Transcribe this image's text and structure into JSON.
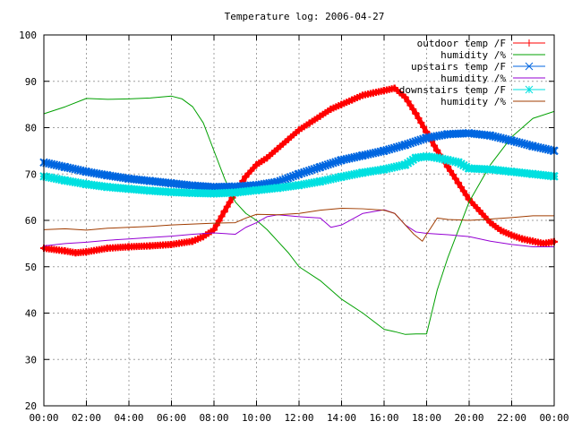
{
  "chart_data": {
    "type": "line",
    "title": "Temperature log: 2006-04-27",
    "xlabel": "",
    "ylabel": "",
    "xlim": [
      0,
      24
    ],
    "ylim": [
      20,
      100
    ],
    "grid": true,
    "legend_position": "top-right",
    "x_tick_labels": [
      "00:00",
      "02:00",
      "04:00",
      "06:00",
      "08:00",
      "10:00",
      "12:00",
      "14:00",
      "16:00",
      "18:00",
      "20:00",
      "22:00",
      "00:00"
    ],
    "y_tick_labels": [
      "20",
      "30",
      "40",
      "50",
      "60",
      "70",
      "80",
      "90",
      "100"
    ],
    "series": [
      {
        "name": "outdoor temp /F",
        "color": "#ff0000",
        "marker": "plus",
        "x": [
          0,
          1,
          1.5,
          2,
          3,
          4,
          5,
          6,
          7,
          7.5,
          8,
          8.5,
          9,
          9.5,
          10,
          10.5,
          11,
          11.5,
          12,
          12.5,
          13,
          13.5,
          14,
          14.5,
          15,
          15.5,
          16,
          16.5,
          17,
          17.5,
          18,
          18.5,
          19,
          19.5,
          20,
          20.5,
          21,
          21.5,
          22,
          22.5,
          23,
          23.5,
          24
        ],
        "y": [
          54,
          53.4,
          53,
          53.2,
          54,
          54.3,
          54.5,
          54.8,
          55.5,
          56.5,
          58,
          62,
          66,
          69.5,
          72,
          73.5,
          75.5,
          77.5,
          79.5,
          81,
          82.5,
          84,
          85,
          86,
          87,
          87.5,
          88,
          88.5,
          86.5,
          83,
          79,
          75,
          71.5,
          68,
          64.5,
          62,
          59.5,
          57.8,
          56.8,
          56,
          55.5,
          55,
          55.4
        ]
      },
      {
        "name": "humidity /%",
        "color": "#00a000",
        "marker": "none",
        "x": [
          0,
          1,
          2,
          3,
          4,
          5,
          6,
          6.5,
          7,
          7.5,
          8,
          8.5,
          9,
          9.5,
          10,
          10.5,
          11,
          11.5,
          12,
          13,
          14,
          15,
          16,
          16.5,
          17,
          17.5,
          18,
          18.5,
          19,
          19.5,
          20,
          21,
          22,
          23,
          24
        ],
        "y": [
          83,
          84.5,
          86.3,
          86.1,
          86.2,
          86.4,
          86.8,
          86.2,
          84.5,
          81,
          75,
          69,
          64,
          61.5,
          60,
          58,
          55.5,
          53,
          50,
          47,
          43,
          40,
          36.5,
          36,
          35.4,
          35.5,
          35.5,
          45,
          52,
          58,
          64,
          72,
          78,
          82,
          83.5
        ]
      },
      {
        "name": "upstairs temp /F",
        "color": "#0066e0",
        "marker": "cross",
        "x": [
          0,
          1,
          2,
          3,
          4,
          5,
          6,
          7,
          8,
          9,
          10,
          11,
          12,
          13,
          14,
          15,
          16,
          17,
          18,
          19,
          20,
          21,
          22,
          23,
          24
        ],
        "y": [
          72.5,
          71.5,
          70.5,
          69.7,
          69,
          68.5,
          68,
          67.5,
          67.2,
          67.3,
          67.6,
          68.3,
          70,
          71.5,
          73,
          74,
          75,
          76.3,
          77.8,
          78.6,
          78.8,
          78.3,
          77.2,
          76,
          75
        ]
      },
      {
        "name": "humidity /%",
        "color": "#9500d3",
        "marker": "none",
        "x": [
          0,
          1,
          2,
          3,
          4,
          5,
          6,
          7,
          8,
          9,
          9.5,
          10,
          10.5,
          11,
          12,
          13,
          13.5,
          14,
          15,
          16,
          16.5,
          17,
          17.5,
          18,
          19,
          20,
          21,
          22,
          23,
          24
        ],
        "y": [
          54.5,
          55,
          55.3,
          55.7,
          56,
          56.3,
          56.6,
          57,
          57.3,
          57,
          58.5,
          59.5,
          60.8,
          61.2,
          60.8,
          60.5,
          58.5,
          59,
          61.5,
          62.3,
          61.5,
          59,
          57.5,
          57.2,
          56.9,
          56.5,
          55.5,
          54.8,
          54.3,
          54.3
        ]
      },
      {
        "name": "downstairs temp /F",
        "color": "#00e0e0",
        "marker": "star",
        "x": [
          0,
          1,
          2,
          3,
          4,
          5,
          6,
          7,
          8,
          9,
          10,
          11,
          12,
          13,
          14,
          15,
          16,
          17,
          17.5,
          18,
          18.5,
          19,
          19.5,
          20,
          21,
          22,
          23,
          24
        ],
        "y": [
          69.5,
          68.6,
          67.8,
          67.2,
          66.8,
          66.4,
          66.1,
          65.9,
          65.8,
          66,
          66.5,
          67,
          67.6,
          68.4,
          69.4,
          70.3,
          71,
          72,
          73.5,
          73.8,
          73.5,
          73,
          72.5,
          71.2,
          71,
          70.5,
          70,
          69.5
        ]
      },
      {
        "name": "humidity /%",
        "color": "#a03c00",
        "marker": "none",
        "x": [
          0,
          1,
          2,
          3,
          4,
          5,
          6,
          7,
          8,
          9,
          9.5,
          10,
          11,
          12,
          13,
          14,
          15,
          16,
          16.5,
          17,
          17.4,
          17.8,
          18,
          18.5,
          19,
          20,
          21,
          22,
          23,
          24
        ],
        "y": [
          58,
          58.2,
          57.9,
          58.3,
          58.5,
          58.7,
          59,
          59.2,
          59.4,
          59.5,
          60.5,
          61.3,
          61.2,
          61.5,
          62.2,
          62.6,
          62.5,
          62.2,
          61.5,
          59,
          57,
          55.5,
          57,
          60.5,
          60.2,
          60,
          60.3,
          60.6,
          61,
          61
        ]
      }
    ]
  }
}
